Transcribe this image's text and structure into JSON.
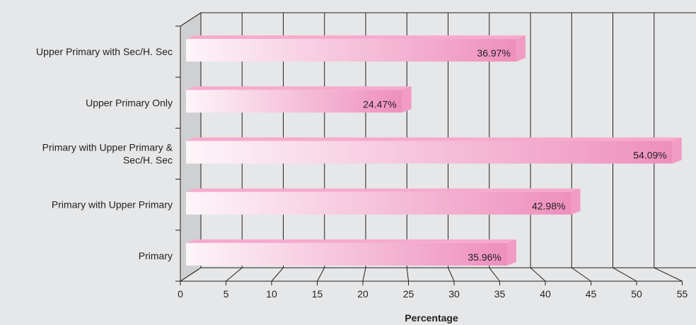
{
  "chart_data": {
    "type": "bar",
    "orientation": "horizontal",
    "categories": [
      [
        "Upper Primary with Sec/H. Sec"
      ],
      [
        "Upper Primary Only"
      ],
      [
        "Primary with Upper Primary &",
        "Sec/H. Sec"
      ],
      [
        "Primary with Upper Primary"
      ],
      [
        "Primary"
      ]
    ],
    "values": [
      36.97,
      24.47,
      54.09,
      42.98,
      35.96
    ],
    "value_labels": [
      "36.97%",
      "24.47%",
      "54.09%",
      "42.98%",
      "35.96%"
    ],
    "xticks": [
      0,
      5,
      10,
      15,
      20,
      25,
      30,
      35,
      40,
      45,
      50,
      55
    ],
    "xlim": [
      0,
      55
    ],
    "xlabel": "Percentage",
    "grid": true,
    "colors": {
      "background": "#e6e7e8",
      "bar_start": "#fdf5f9",
      "bar_end": "#ee8fbc",
      "bar_top": "#f7aacd",
      "bar_end_face": "#f29bc4",
      "side_wall": "#cfd0d2",
      "lines": "#231f20"
    }
  }
}
